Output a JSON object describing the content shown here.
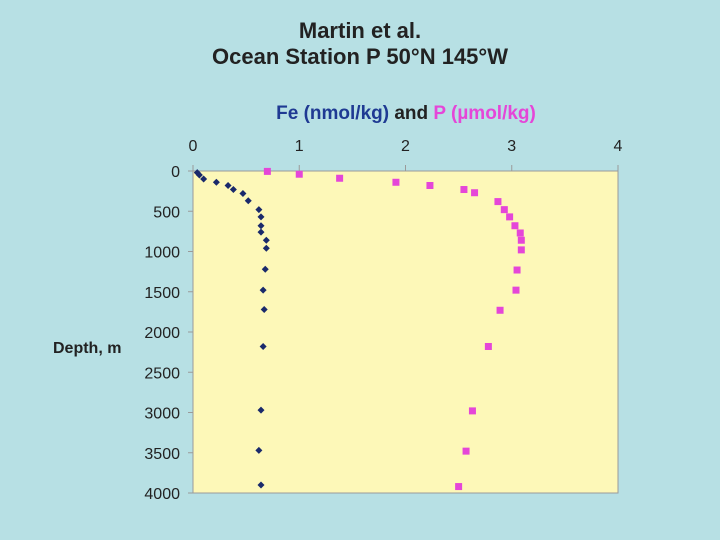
{
  "title_line1": "Martin et al.",
  "title_line2": "Ocean Station P 50°N 145°W",
  "subtitle": {
    "fe": "Fe (nmol/kg)",
    "and": "and",
    "p": "P (µmol/kg)"
  },
  "chart_data": {
    "type": "scatter",
    "title": "Martin et al. Ocean Station P 50°N 145°W",
    "subtitle": "Fe (nmol/kg) and P (µmol/kg)",
    "xlabel": "",
    "ylabel": "Depth, m",
    "xlim": [
      0,
      4
    ],
    "ylim": [
      0,
      4000
    ],
    "y_inverted": true,
    "x_axis_position": "top",
    "xticks": [
      "0",
      "1",
      "2",
      "3",
      "4"
    ],
    "yticks": [
      "0",
      "500",
      "1000",
      "1500",
      "2000",
      "2500",
      "3000",
      "3500",
      "4000"
    ],
    "grid": false,
    "plot_background": "#fdf8b8",
    "series": [
      {
        "name": "Fe (nmol/kg)",
        "marker": "diamond",
        "color": "#1a2a6b",
        "points": [
          {
            "x": 0.04,
            "y": 20
          },
          {
            "x": 0.06,
            "y": 50
          },
          {
            "x": 0.1,
            "y": 100
          },
          {
            "x": 0.22,
            "y": 140
          },
          {
            "x": 0.33,
            "y": 180
          },
          {
            "x": 0.38,
            "y": 230
          },
          {
            "x": 0.47,
            "y": 280
          },
          {
            "x": 0.52,
            "y": 370
          },
          {
            "x": 0.62,
            "y": 480
          },
          {
            "x": 0.64,
            "y": 570
          },
          {
            "x": 0.64,
            "y": 680
          },
          {
            "x": 0.64,
            "y": 760
          },
          {
            "x": 0.69,
            "y": 860
          },
          {
            "x": 0.69,
            "y": 960
          },
          {
            "x": 0.68,
            "y": 1220
          },
          {
            "x": 0.66,
            "y": 1480
          },
          {
            "x": 0.67,
            "y": 1720
          },
          {
            "x": 0.66,
            "y": 2180
          },
          {
            "x": 0.64,
            "y": 2970
          },
          {
            "x": 0.62,
            "y": 3470
          },
          {
            "x": 0.64,
            "y": 3900
          }
        ]
      },
      {
        "name": "P (µmol/kg)",
        "marker": "square",
        "color": "#e546d8",
        "points": [
          {
            "x": 0.7,
            "y": 5
          },
          {
            "x": 1.0,
            "y": 40
          },
          {
            "x": 1.38,
            "y": 90
          },
          {
            "x": 1.91,
            "y": 140
          },
          {
            "x": 2.23,
            "y": 180
          },
          {
            "x": 2.55,
            "y": 230
          },
          {
            "x": 2.65,
            "y": 270
          },
          {
            "x": 2.87,
            "y": 380
          },
          {
            "x": 2.93,
            "y": 480
          },
          {
            "x": 2.98,
            "y": 570
          },
          {
            "x": 3.03,
            "y": 680
          },
          {
            "x": 3.08,
            "y": 770
          },
          {
            "x": 3.09,
            "y": 860
          },
          {
            "x": 3.09,
            "y": 980
          },
          {
            "x": 3.05,
            "y": 1230
          },
          {
            "x": 3.04,
            "y": 1480
          },
          {
            "x": 2.89,
            "y": 1730
          },
          {
            "x": 2.78,
            "y": 2180
          },
          {
            "x": 2.63,
            "y": 2980
          },
          {
            "x": 2.57,
            "y": 3480
          },
          {
            "x": 2.5,
            "y": 3920
          }
        ]
      }
    ]
  }
}
